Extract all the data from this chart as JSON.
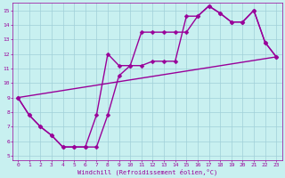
{
  "xlabel": "Windchill (Refroidissement éolien,°C)",
  "bg_color": "#c8f0f0",
  "line_color": "#990099",
  "grid_color": "#a0d0d8",
  "xlim": [
    -0.5,
    23.5
  ],
  "ylim": [
    4.7,
    15.5
  ],
  "xticks": [
    0,
    1,
    2,
    3,
    4,
    5,
    6,
    7,
    8,
    9,
    10,
    11,
    12,
    13,
    14,
    15,
    16,
    17,
    18,
    19,
    20,
    21,
    22,
    23
  ],
  "yticks": [
    5,
    6,
    7,
    8,
    9,
    10,
    11,
    12,
    13,
    14,
    15
  ],
  "line1_x": [
    0,
    1,
    2,
    3,
    4,
    5,
    6,
    7,
    8,
    9,
    10,
    11,
    12,
    13,
    14,
    15,
    16,
    17,
    18,
    19,
    20,
    21,
    22,
    23
  ],
  "line1_y": [
    9,
    7.8,
    7,
    6.4,
    5.6,
    5.6,
    5.6,
    5.6,
    7.8,
    10.5,
    11.2,
    13.5,
    13.5,
    13.5,
    13.5,
    13.5,
    14.6,
    15.3,
    14.8,
    14.2,
    14.2,
    15.0,
    12.8,
    11.8
  ],
  "line2_x": [
    0,
    1,
    2,
    3,
    4,
    5,
    6,
    7,
    8,
    9,
    10,
    11,
    12,
    13,
    14,
    15,
    16,
    17,
    18,
    19,
    20,
    21,
    22,
    23
  ],
  "line2_y": [
    9,
    7.8,
    7,
    6.4,
    5.6,
    5.6,
    5.6,
    7.8,
    12.0,
    11.2,
    11.2,
    11.2,
    11.5,
    11.5,
    11.5,
    14.6,
    14.6,
    15.3,
    14.8,
    14.2,
    14.2,
    15.0,
    12.8,
    11.8
  ],
  "line3_x": [
    0,
    23
  ],
  "line3_y": [
    9,
    11.8
  ],
  "markersize": 2.5,
  "linewidth": 1.0
}
